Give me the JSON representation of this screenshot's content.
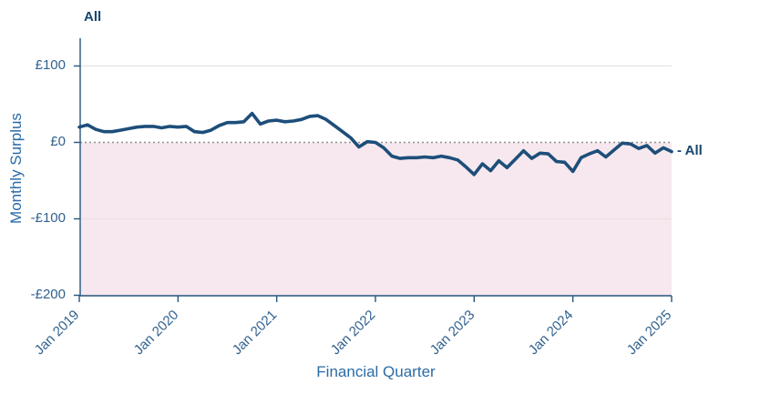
{
  "chart_title": "All",
  "series_end_label": "- All",
  "x_axis": {
    "title": "Financial Quarter",
    "tick_labels": [
      "Jan 2019",
      "Jan 2020",
      "Jan 2021",
      "Jan 2022",
      "Jan 2023",
      "Jan 2024",
      "Jan 2025"
    ]
  },
  "y_axis": {
    "title": "Monthly Surplus",
    "tick_labels": [
      "£100",
      "£0",
      "-£100",
      "-£200"
    ],
    "tick_values": [
      100,
      0,
      -100,
      -200
    ]
  },
  "colors": {
    "line": "#1d4e7a",
    "title_text": "#17466f",
    "tick_text": "#31618e",
    "axis_title_text": "#2a6ba6",
    "negative_region_fill": "#f6e8ee",
    "zero_line": "#8f8f8f",
    "gridline": "#e7e1e4",
    "axis_line": "#24557f"
  },
  "chart_data": {
    "type": "line",
    "title": "All",
    "xlabel": "Financial Quarter",
    "ylabel": "Monthly Surplus",
    "x_tick_labels": [
      "Jan 2019",
      "Jan 2020",
      "Jan 2021",
      "Jan 2022",
      "Jan 2023",
      "Jan 2024",
      "Jan 2025"
    ],
    "y_tick_values": [
      100,
      0,
      -100,
      -200
    ],
    "ylim": [
      -200,
      135
    ],
    "x_range": [
      "Jan 2019",
      "Jan 2025"
    ],
    "frequency": "monthly",
    "grid": "horizontal gridlines at +100 and -100 only",
    "zero_reference_line": "dotted grey line at £0",
    "shaded_region": "area below £0 shaded light pink",
    "legend": "series labelled 'All' at top-left and at right end of line",
    "series": [
      {
        "name": "All",
        "values": [
          20,
          23,
          17,
          14,
          14,
          16,
          18,
          20,
          21,
          21,
          19,
          21,
          20,
          21,
          14,
          13,
          16,
          22,
          26,
          26,
          27,
          38,
          24,
          28,
          29,
          27,
          28,
          30,
          34,
          35,
          30,
          22,
          14,
          6,
          -6,
          1,
          0,
          -7,
          -18,
          -21,
          -20,
          -20,
          -19,
          -20,
          -18,
          -20,
          -23,
          -32,
          -42,
          -28,
          -37,
          -24,
          -33,
          -22,
          -11,
          -21,
          -14,
          -15,
          -25,
          -26,
          -38,
          -20,
          -15,
          -11,
          -19,
          -10,
          -1,
          -2,
          -8,
          -4,
          -14,
          -7,
          -12
        ]
      }
    ]
  }
}
